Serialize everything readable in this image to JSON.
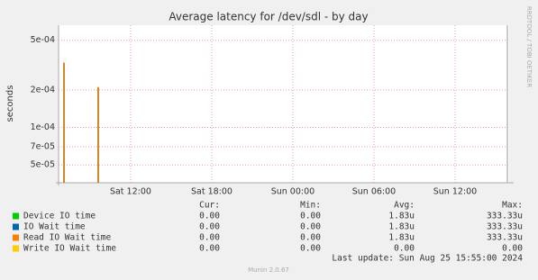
{
  "chart_data": {
    "type": "spike",
    "title": "Average latency for /dev/sdl - by day",
    "ylabel": "seconds",
    "log_y": true,
    "grid": true,
    "ylim": [
      3.6e-05,
      0.00066
    ],
    "yticks": [
      {
        "value": 5e-05,
        "label": "5e-05"
      },
      {
        "value": 7e-05,
        "label": "7e-05"
      },
      {
        "value": 0.0001,
        "label": "1e-04"
      },
      {
        "value": 0.0002,
        "label": "2e-04"
      },
      {
        "value": 0.0005,
        "label": "5e-04"
      }
    ],
    "xlim": [
      6.67,
      40
    ],
    "xticks": [
      {
        "value": 12,
        "label": "Sat 12:00"
      },
      {
        "value": 18,
        "label": "Sat 18:00"
      },
      {
        "value": 24,
        "label": "Sun 00:00"
      },
      {
        "value": 30,
        "label": "Sun 06:00"
      },
      {
        "value": 36,
        "label": "Sun 12:00"
      }
    ],
    "x": [
      7.07,
      9.6
    ],
    "columns": [
      "Cur:",
      "Min:",
      "Avg:",
      "Max:"
    ],
    "series": [
      {
        "name": "Device IO time",
        "color": "#00cc00",
        "values": [
          0.00033,
          0.00021
        ],
        "cur": "0.00",
        "min": "0.00",
        "avg": "1.83u",
        "max": "333.33u"
      },
      {
        "name": "IO Wait time",
        "color": "#0066b3",
        "values": [
          0.00033,
          0.00021
        ],
        "cur": "0.00",
        "min": "0.00",
        "avg": "1.83u",
        "max": "333.33u"
      },
      {
        "name": "Read IO Wait time",
        "color": "#ff8000",
        "values": [
          0.00033,
          0.00021
        ],
        "cur": "0.00",
        "min": "0.00",
        "avg": "1.83u",
        "max": "333.33u"
      },
      {
        "name": "Write IO Wait time",
        "color": "#ffcc00",
        "values": [
          null,
          null
        ],
        "cur": "0.00",
        "min": "0.00",
        "avg": "0.00",
        "max": "0.00"
      }
    ],
    "last_update": "Last update: Sun Aug 25 15:55:00 2024",
    "footer": "Munin 2.0.67",
    "side_label": "RRDTOOL / TOBI OETIKER"
  }
}
